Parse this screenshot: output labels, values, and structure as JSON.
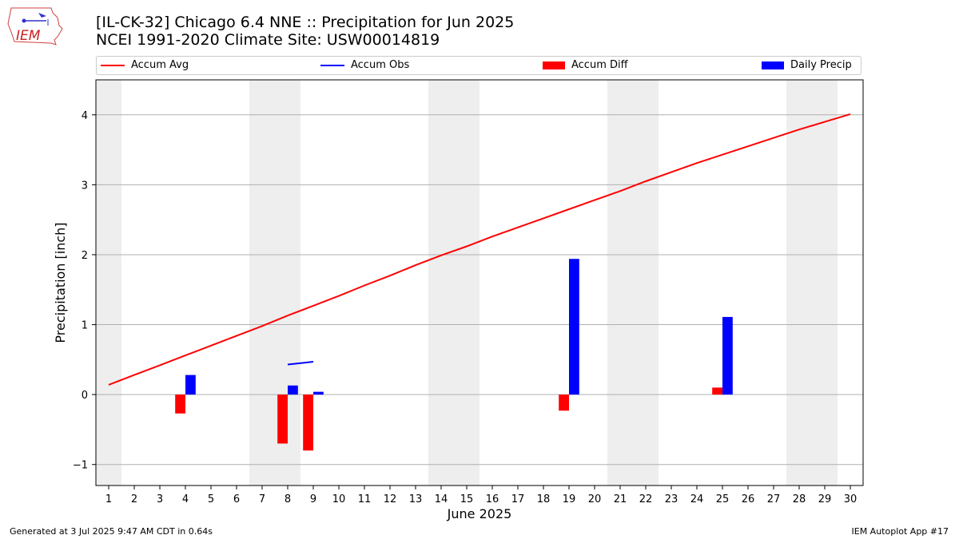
{
  "header": {
    "logo_text": "IEM",
    "title_line1": "[IL-CK-32] Chicago 6.4 NNE :: Precipitation for Jun 2025",
    "title_line2": "NCEI 1991-2020 Climate Site: USW00014819"
  },
  "legend": [
    {
      "label": "Accum Avg",
      "kind": "line",
      "color": "#ff0000"
    },
    {
      "label": "Accum Obs",
      "kind": "line",
      "color": "#0000ff"
    },
    {
      "label": "Accum Diff",
      "kind": "box",
      "color": "#ff0000"
    },
    {
      "label": "Daily Precip",
      "kind": "box",
      "color": "#0000ff"
    }
  ],
  "footer": {
    "left": "Generated at 3 Jul 2025 9:47 AM CDT in 0.64s",
    "right": "IEM Autoplot App #17"
  },
  "chart_data": {
    "type": "bar",
    "xlabel": "June 2025",
    "ylabel": "Precipitation [inch]",
    "x": [
      1,
      2,
      3,
      4,
      5,
      6,
      7,
      8,
      9,
      10,
      11,
      12,
      13,
      14,
      15,
      16,
      17,
      18,
      19,
      20,
      21,
      22,
      23,
      24,
      25,
      26,
      27,
      28,
      29,
      30
    ],
    "xlim": [
      0.5,
      30.5
    ],
    "ylim": [
      -1.3,
      4.5
    ],
    "yticks": [
      -1,
      0,
      1,
      2,
      3,
      4
    ],
    "ytick_labels": [
      "−1",
      "0",
      "1",
      "2",
      "3",
      "4"
    ],
    "grid": "y",
    "weekend_shading": [
      [
        0.5,
        1.5
      ],
      [
        6.5,
        8.5
      ],
      [
        13.5,
        15.5
      ],
      [
        20.5,
        22.5
      ],
      [
        27.5,
        29.5
      ]
    ],
    "shading_color": "#eeeeee",
    "series": [
      {
        "name": "Accum Avg",
        "type": "line",
        "color": "#ff0000",
        "values": [
          0.14,
          0.28,
          0.42,
          0.56,
          0.7,
          0.84,
          0.98,
          1.13,
          1.27,
          1.41,
          1.56,
          1.7,
          1.85,
          1.99,
          2.12,
          2.26,
          2.39,
          2.52,
          2.65,
          2.78,
          2.91,
          3.05,
          3.18,
          3.31,
          3.43,
          3.55,
          3.67,
          3.79,
          3.9,
          4.01
        ]
      },
      {
        "name": "Accum Obs",
        "type": "line",
        "color": "#0000ff",
        "points": [
          [
            8,
            0.43
          ],
          [
            9,
            0.47
          ]
        ]
      },
      {
        "name": "Accum Diff",
        "type": "bar",
        "color": "#ff0000",
        "offset": -0.2,
        "points": [
          [
            4,
            -0.27
          ],
          [
            8,
            -0.7
          ],
          [
            9,
            -0.8
          ],
          [
            19,
            -0.23
          ],
          [
            25,
            0.1
          ]
        ]
      },
      {
        "name": "Daily Precip",
        "type": "bar",
        "color": "#0000ff",
        "offset": 0.2,
        "points": [
          [
            4,
            0.28
          ],
          [
            8,
            0.13
          ],
          [
            9,
            0.04
          ],
          [
            19,
            1.94
          ],
          [
            25,
            1.11
          ]
        ]
      }
    ]
  }
}
